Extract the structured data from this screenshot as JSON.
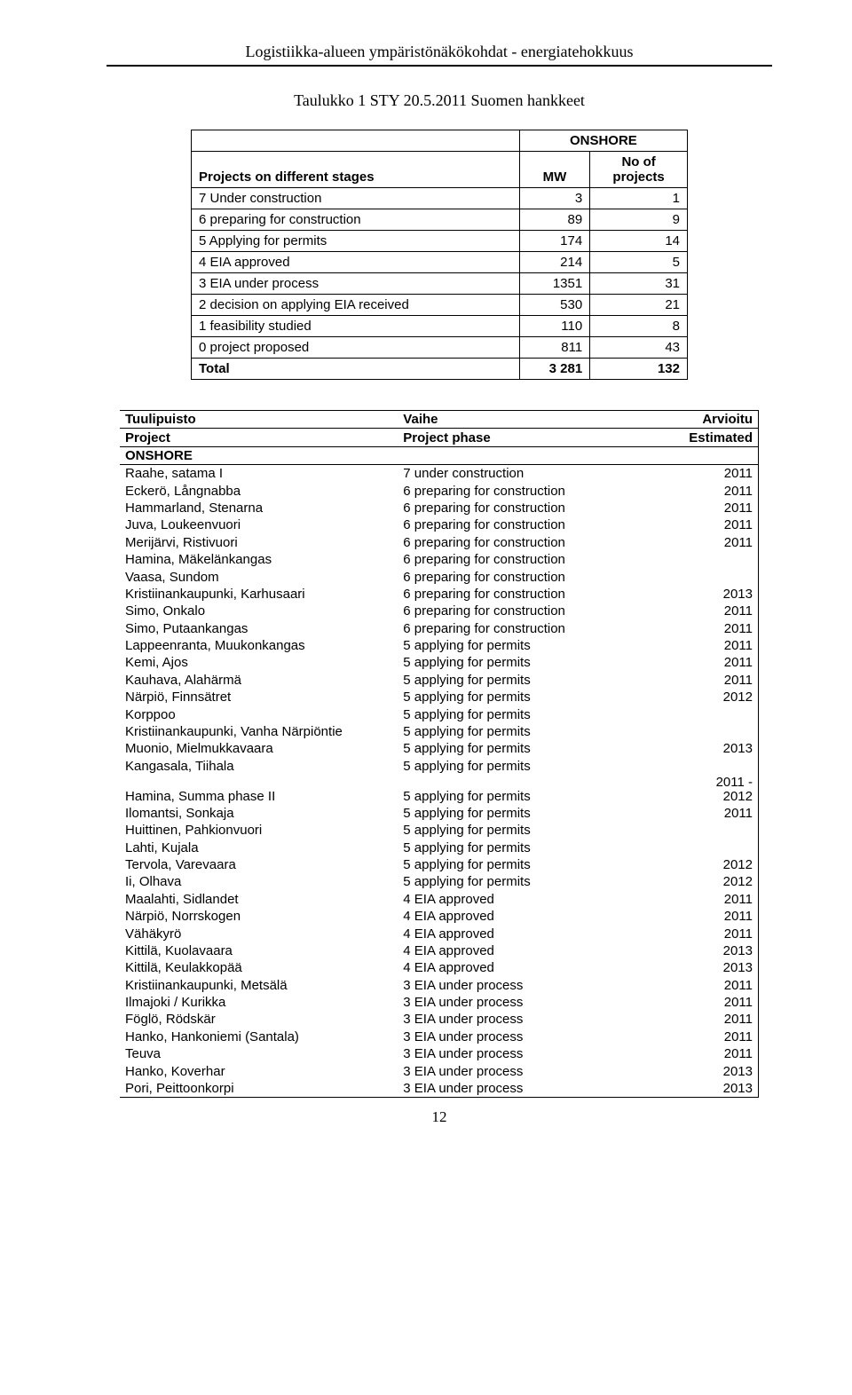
{
  "header": {
    "title": "Logistiikka-alueen ympäristönäkökohdat - energiatehokkuus"
  },
  "caption": "Taulukko 1 STY 20.5.2011 Suomen hankkeet",
  "summary": {
    "onshore_label": "ONSHORE",
    "stages_label": "Projects on different stages",
    "mw_label": "MW",
    "noof_label_line1": "No of",
    "noof_label_line2": "projects",
    "rows": [
      {
        "label": "7 Under construction",
        "mw": "3",
        "n": "1"
      },
      {
        "label": "6 preparing for construction",
        "mw": "89",
        "n": "9"
      },
      {
        "label": "5 Applying for permits",
        "mw": "174",
        "n": "14"
      },
      {
        "label": "4 EIA approved",
        "mw": "214",
        "n": "5"
      },
      {
        "label": "3 EIA under process",
        "mw": "1351",
        "n": "31"
      },
      {
        "label": "2 decision on applying EIA received",
        "mw": "530",
        "n": "21"
      },
      {
        "label": "1 feasibility studied",
        "mw": "110",
        "n": "8"
      },
      {
        "label": "0 project proposed",
        "mw": "811",
        "n": "43"
      }
    ],
    "total": {
      "label": "Total",
      "mw": "3 281",
      "n": "132"
    }
  },
  "details": {
    "hdr1": {
      "c1": "Tuulipuisto",
      "c2": "Vaihe",
      "c3": "Arvioitu"
    },
    "hdr2": {
      "c1": "Project",
      "c2": "Project phase",
      "c3": "Estimated"
    },
    "onshore_row": "ONSHORE",
    "rows": [
      {
        "p": "Raahe, satama I",
        "ph": "7 under construction",
        "y": "2011"
      },
      {
        "p": "Eckerö, Långnabba",
        "ph": "6 preparing for construction",
        "y": "2011"
      },
      {
        "p": "Hammarland, Stenarna",
        "ph": "6 preparing for construction",
        "y": "2011"
      },
      {
        "p": "Juva, Loukeenvuori",
        "ph": "6 preparing for construction",
        "y": "2011"
      },
      {
        "p": "Merijärvi, Ristivuori",
        "ph": "6 preparing for construction",
        "y": "2011"
      },
      {
        "p": "Hamina, Mäkelänkangas",
        "ph": "6 preparing for construction",
        "y": ""
      },
      {
        "p": "Vaasa, Sundom",
        "ph": "6 preparing for construction",
        "y": ""
      },
      {
        "p": "Kristiinankaupunki, Karhusaari",
        "ph": "6 preparing for construction",
        "y": "2013"
      },
      {
        "p": "Simo, Onkalo",
        "ph": "6 preparing for construction",
        "y": "2011"
      },
      {
        "p": "Simo, Putaankangas",
        "ph": "6 preparing for construction",
        "y": "2011"
      },
      {
        "p": "Lappeenranta, Muukonkangas",
        "ph": "5 applying for permits",
        "y": "2011"
      },
      {
        "p": "Kemi, Ajos",
        "ph": "5 applying for permits",
        "y": "2011"
      },
      {
        "p": "Kauhava, Alahärmä",
        "ph": "5 applying for permits",
        "y": "2011"
      },
      {
        "p": "Närpiö, Finnsätret",
        "ph": "5 applying for permits",
        "y": "2012"
      },
      {
        "p": "Korppoo",
        "ph": "5 applying for permits",
        "y": ""
      },
      {
        "p": "Kristiinankaupunki, Vanha Närpiöntie",
        "ph": "5 applying for permits",
        "y": ""
      },
      {
        "p": "Muonio, Mielmukkavaara",
        "ph": "5 applying for permits",
        "y": "2013"
      },
      {
        "p": "Kangasala, Tiihala",
        "ph": "5 applying for permits",
        "y": ""
      },
      {
        "p": "Hamina, Summa phase II",
        "ph": "5 applying for permits",
        "y": "2011 -\n2012",
        "multiline": true
      },
      {
        "p": "Ilomantsi, Sonkaja",
        "ph": "5 applying for permits",
        "y": "2011"
      },
      {
        "p": "Huittinen, Pahkionvuori",
        "ph": "5 applying for permits",
        "y": ""
      },
      {
        "p": "Lahti, Kujala",
        "ph": "5 applying for permits",
        "y": ""
      },
      {
        "p": "Tervola, Varevaara",
        "ph": "5 applying for permits",
        "y": "2012"
      },
      {
        "p": "Ii, Olhava",
        "ph": "5 applying for permits",
        "y": "2012"
      },
      {
        "p": "Maalahti, Sidlandet",
        "ph": "4 EIA approved",
        "y": "2011"
      },
      {
        "p": "Närpiö, Norrskogen",
        "ph": "4 EIA approved",
        "y": "2011"
      },
      {
        "p": "Vähäkyrö",
        "ph": "4 EIA approved",
        "y": "2011"
      },
      {
        "p": "Kittilä, Kuolavaara",
        "ph": "4 EIA approved",
        "y": "2013"
      },
      {
        "p": "Kittilä, Keulakkopää",
        "ph": "4 EIA approved",
        "y": "2013"
      },
      {
        "p": "Kristiinankaupunki, Metsälä",
        "ph": "3 EIA under process",
        "y": "2011"
      },
      {
        "p": "Ilmajoki / Kurikka",
        "ph": "3 EIA under process",
        "y": "2011"
      },
      {
        "p": "Föglö, Rödskär",
        "ph": "3 EIA under process",
        "y": "2011"
      },
      {
        "p": "Hanko, Hankoniemi (Santala)",
        "ph": "3 EIA under process",
        "y": "2011"
      },
      {
        "p": "Teuva",
        "ph": "3 EIA under process",
        "y": "2011"
      },
      {
        "p": "Hanko, Koverhar",
        "ph": "3 EIA under process",
        "y": "2013"
      },
      {
        "p": "Pori, Peittoonkorpi",
        "ph": "3 EIA under process",
        "y": "2013"
      }
    ]
  },
  "page_number": "12"
}
